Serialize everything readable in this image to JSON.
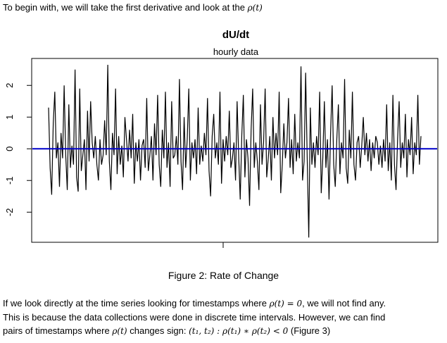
{
  "intro": {
    "text": "To begin with, we will take the first derivative and look at the",
    "symbol": "ρ(t)"
  },
  "chart_data": {
    "type": "line",
    "title": "dU/dt",
    "subtitle": "hourly data",
    "xlabel": "",
    "ylabel": "",
    "ylim": [
      -2.95,
      2.85
    ],
    "yticks": [
      -2,
      -1,
      0,
      1,
      2
    ],
    "grid": false,
    "reference_line": {
      "y": 0,
      "color": "#0000cc"
    },
    "series_color": "#000000",
    "x": [
      0,
      1,
      2,
      3,
      4,
      5,
      6,
      7,
      8,
      9,
      10,
      11,
      12,
      13,
      14,
      15,
      16,
      17,
      18,
      19,
      20,
      21,
      22,
      23,
      24,
      25,
      26,
      27,
      28,
      29,
      30,
      31,
      32,
      33,
      34,
      35,
      36,
      37,
      38,
      39,
      40,
      41,
      42,
      43,
      44,
      45,
      46,
      47,
      48,
      49,
      50,
      51,
      52,
      53,
      54,
      55,
      56,
      57,
      58,
      59,
      60,
      61,
      62,
      63,
      64,
      65,
      66,
      67,
      68,
      69,
      70,
      71,
      72,
      73,
      74,
      75,
      76,
      77,
      78,
      79,
      80,
      81,
      82,
      83,
      84,
      85,
      86,
      87,
      88,
      89,
      90,
      91,
      92,
      93,
      94,
      95,
      96,
      97,
      98,
      99,
      100,
      101,
      102,
      103,
      104,
      105,
      106,
      107,
      108,
      109,
      110,
      111,
      112,
      113,
      114,
      115,
      116,
      117,
      118,
      119,
      120,
      121,
      122,
      123,
      124,
      125,
      126,
      127,
      128,
      129,
      130,
      131,
      132,
      133,
      134,
      135,
      136,
      137,
      138,
      139,
      140,
      141,
      142,
      143,
      144,
      145,
      146,
      147,
      148,
      149,
      150,
      151,
      152,
      153,
      154,
      155,
      156,
      157,
      158,
      159,
      160,
      161,
      162,
      163,
      164,
      165,
      166,
      167,
      168,
      169,
      170,
      171,
      172,
      173,
      174,
      175,
      176,
      177,
      178,
      179,
      180,
      181,
      182,
      183,
      184,
      185,
      186,
      187,
      188,
      189,
      190,
      191,
      192,
      193,
      194,
      195,
      196,
      197,
      198,
      199,
      200,
      201,
      202,
      203,
      204,
      205,
      206,
      207,
      208,
      209,
      210,
      211,
      212,
      213,
      214,
      215,
      216,
      217,
      218,
      219,
      220,
      221,
      222,
      223,
      224,
      225,
      226,
      227,
      228,
      229,
      230,
      231,
      232,
      233,
      234,
      235,
      236,
      237,
      238,
      239
    ],
    "values": [
      1.3,
      -0.6,
      -1.45,
      0.8,
      1.8,
      -0.3,
      0.2,
      -1.2,
      0.5,
      -0.3,
      2.0,
      -0.2,
      -1.3,
      1.4,
      -0.6,
      0.1,
      -0.5,
      2.5,
      -0.9,
      -1.35,
      1.9,
      -0.7,
      -0.2,
      0.3,
      -1.3,
      1.2,
      -0.4,
      1.5,
      0.2,
      -0.3,
      0.4,
      -0.5,
      -1.0,
      0.3,
      -0.5,
      -0.2,
      0.9,
      -0.2,
      2.65,
      -0.4,
      -1.3,
      0.5,
      -0.2,
      1.9,
      -0.8,
      0.4,
      -0.5,
      0.1,
      -0.9,
      1.0,
      0.3,
      -0.4,
      0.6,
      -0.3,
      1.1,
      -1.1,
      0.2,
      -0.4,
      0.3,
      -1.0,
      0.1,
      0.3,
      -0.6,
      1.6,
      -0.7,
      -0.2,
      0.4,
      -1.0,
      0.8,
      -0.2,
      1.7,
      -0.5,
      -1.2,
      0.6,
      -0.3,
      1.8,
      -0.6,
      0.2,
      -1.2,
      1.5,
      -0.3,
      -0.2,
      0.4,
      -0.5,
      2.2,
      -0.4,
      -1.3,
      1.0,
      -0.6,
      0.3,
      1.9,
      -1.0,
      0.2,
      -0.3,
      0.3,
      -0.8,
      1.3,
      -0.5,
      0.1,
      -0.4,
      0.5,
      -0.2,
      1.6,
      -0.7,
      -1.5,
      0.4,
      1.1,
      -0.3,
      0.2,
      -0.5,
      1.8,
      -1.1,
      0.3,
      -0.4,
      0.4,
      -0.2,
      1.2,
      -0.6,
      -0.3,
      0.2,
      -1.0,
      1.5,
      -0.2,
      -1.6,
      0.4,
      1.7,
      -0.9,
      0.3,
      -0.3,
      -1.8,
      0.6,
      1.9,
      -0.6,
      0.2,
      -0.4,
      -1.3,
      1.4,
      -0.5,
      0.2,
      1.9,
      -0.9,
      -0.3,
      0.4,
      -1.0,
      1.0,
      -0.3,
      0.5,
      -0.2,
      1.8,
      -1.4,
      -0.5,
      0.8,
      -0.3,
      0.2,
      1.6,
      -0.6,
      0.3,
      -0.8,
      1.1,
      -0.4,
      0.2,
      -0.3,
      2.6,
      -1.0,
      -0.4,
      2.4,
      -0.3,
      -2.8,
      1.3,
      -0.5,
      0.2,
      -0.6,
      0.4,
      -0.2,
      1.8,
      -1.4,
      -0.3,
      1.5,
      -0.6,
      0.3,
      -1.6,
      0.5,
      2.0,
      -0.5,
      -1.2,
      0.3,
      1.4,
      -0.8,
      0.2,
      -0.3,
      2.2,
      -0.6,
      -1.1,
      0.6,
      -0.3,
      1.8,
      -0.5,
      -1.0,
      0.2,
      0.4,
      -0.6,
      0.1,
      1.0,
      -0.2,
      0.5,
      -0.4,
      0.3,
      -0.7,
      0.2,
      -0.3,
      0.4,
      0.2,
      -0.5,
      0.1,
      -0.6,
      0.3,
      -0.4,
      1.4,
      -0.7,
      0.2,
      -1.0,
      1.7,
      -0.5,
      -1.3,
      0.3,
      1.5,
      -0.6,
      0.2,
      -0.3,
      1.1,
      -0.9,
      0.3,
      -0.2,
      1.0,
      -0.8,
      0.2,
      -0.2,
      1.7,
      -0.5,
      0.4
    ]
  },
  "caption": "Figure 2: Rate of Change",
  "paragraph": {
    "line1_text": "If we look directly at the time series looking for timestamps where",
    "line1_math": "ρ(t)  =  0",
    "line1_end": ", we will not find any.",
    "line2": "This is because the data collections were done in discrete time intervals.  However, we can find",
    "line3_text": "pairs of timestamps where",
    "line3_symbol": "ρ(t)",
    "line3_mid": "changes sign:",
    "line3_math": "(t₁, t₂) :  ρ(t₁)  ∗  ρ(t₂)  <  0",
    "line3_end": "(Figure 3)"
  }
}
